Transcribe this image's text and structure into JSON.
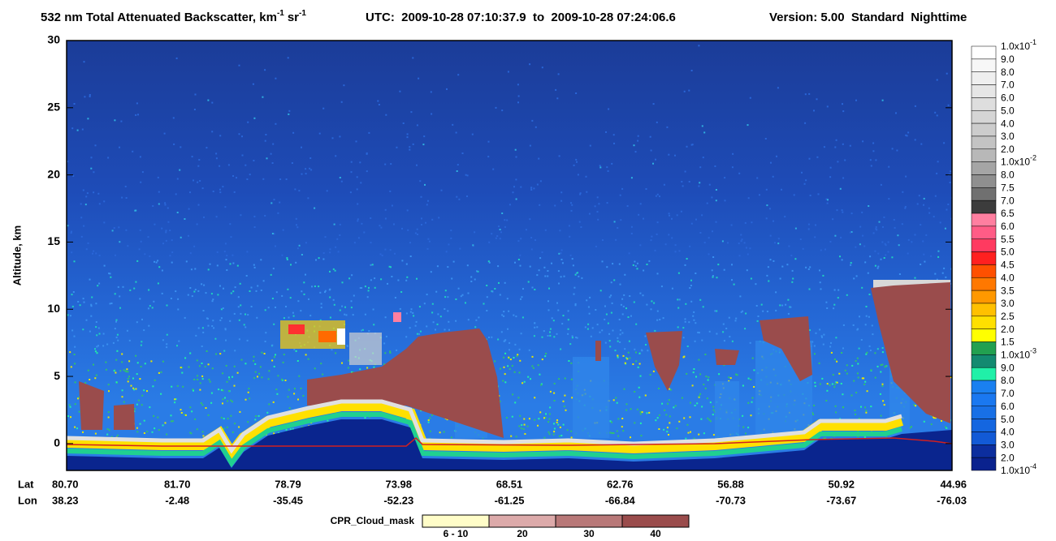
{
  "chart_data": {
    "type": "curtain",
    "title": {
      "text": "532 nm Total Attenuated Backscatter, km",
      "exponents": [
        "-1",
        "-1"
      ],
      "unit": "sr",
      "time": "UTC:  2009-10-28 07:10:37.9  to  2009-10-28 07:24:06.6",
      "version": "Version: 5.00  Standard  Nighttime"
    },
    "ylabel": "Altitude, km",
    "ylim": [
      -2,
      30
    ],
    "yticks": [
      0,
      5,
      10,
      15,
      20,
      25,
      30
    ],
    "lat_label": "Lat",
    "lon_label": "Lon",
    "lat": [
      "80.70",
      "81.70",
      "78.79",
      "73.98",
      "68.51",
      "62.76",
      "56.88",
      "50.92",
      "44.96"
    ],
    "lon": [
      "38.23",
      "-2.48",
      "-35.45",
      "-52.23",
      "-61.25",
      "-66.84",
      "-70.73",
      "-73.67",
      "-76.03"
    ],
    "colorbar": {
      "labels": [
        {
          "label": "1.0x10",
          "exponent": "-1"
        },
        "9.0",
        "8.0",
        "7.0",
        "6.0",
        "5.0",
        "4.0",
        "3.0",
        "2.0",
        {
          "label": "1.0x10",
          "exponent": "-2"
        },
        "8.0",
        "7.5",
        "7.0",
        "6.5",
        "6.0",
        "5.5",
        "5.0",
        "4.5",
        "4.0",
        "3.5",
        "3.0",
        "2.5",
        "2.0",
        "1.5",
        {
          "label": "1.0x10",
          "exponent": "-3"
        },
        "9.0",
        "8.0",
        "7.0",
        "6.0",
        "5.0",
        "4.0",
        "3.0",
        "2.0",
        {
          "label": "1.0x10",
          "exponent": "-4"
        }
      ],
      "colors": [
        "#ffffff",
        "#f7f7f7",
        "#efefef",
        "#e6e6e6",
        "#dedede",
        "#d5d5d5",
        "#cccccc",
        "#c3c3c3",
        "#b8b8b8",
        "#a5a5a5",
        "#8f8f8f",
        "#707070",
        "#3c3c3c",
        "#ff7fa0",
        "#ff5c86",
        "#ff3a60",
        "#ff2020",
        "#ff5000",
        "#ff7800",
        "#ff9800",
        "#ffc000",
        "#ffe000",
        "#ffff00",
        "#22a050",
        "#138a70",
        "#20f0a8",
        "#1a80f0",
        "#1a78f0",
        "#1870e6",
        "#1466e0",
        "#125ad6",
        "#0c2e9e",
        "#0a228e"
      ]
    },
    "cpr_legend": {
      "title": "CPR_Cloud_mask",
      "labels": [
        "6 - 10",
        "20",
        "30",
        "40"
      ],
      "colors": [
        "#fffdc8",
        "#dcaaaa",
        "#b87878",
        "#9a4c4c"
      ]
    }
  }
}
